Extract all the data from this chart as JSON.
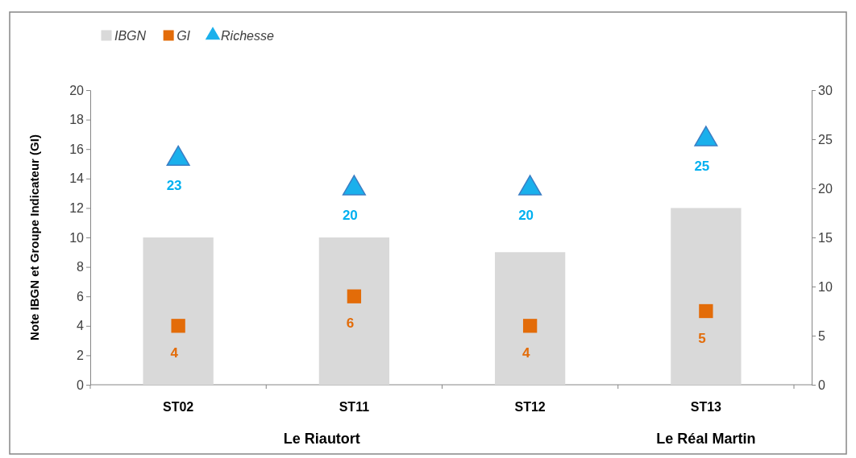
{
  "chart_data": {
    "type": "bar",
    "ylabel": "Note IBGN et Groupe Indicateur (GI)",
    "categories": [
      "ST02",
      "ST11",
      "ST12",
      "ST13"
    ],
    "series": [
      {
        "name": "IBGN",
        "color": "#d9d9d9",
        "values": [
          10,
          10,
          9,
          12
        ]
      },
      {
        "name": "GI",
        "type": "scatter",
        "marker": "square",
        "color": "#e36c09",
        "values": [
          4,
          6,
          4,
          5
        ],
        "value_labels": [
          "4",
          "6",
          "4",
          "5"
        ]
      },
      {
        "name": "Richesse",
        "type": "scatter",
        "marker": "triangle",
        "axis": "y2",
        "color": "#1ab0ec",
        "values": [
          23,
          20,
          20,
          25
        ],
        "value_labels": [
          "23",
          "20",
          "20",
          "25"
        ]
      }
    ],
    "ylim": [
      0,
      20
    ],
    "yticks": [
      0,
      2,
      4,
      6,
      8,
      10,
      12,
      14,
      16,
      18,
      20
    ],
    "y2lim": [
      0,
      30
    ],
    "y2ticks": [
      0,
      5,
      10,
      15,
      20,
      25,
      30
    ],
    "annotations": [
      "Le Riautort",
      "Le Réal Martin"
    ],
    "legend": "top left",
    "grid": false
  }
}
